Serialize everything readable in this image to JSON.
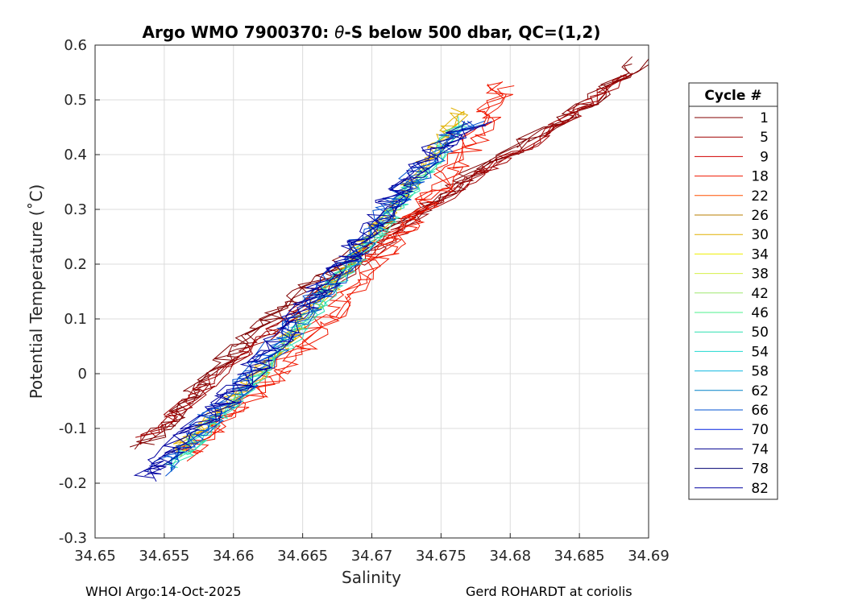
{
  "chart_data": {
    "type": "line",
    "title_prefix": "Argo WMO 7900370: ",
    "title_symbol": "θ",
    "title_suffix": "-S below 500 dbar,  QC=(1,2)",
    "xlabel": "Salinity",
    "ylabel": "Potential Temperature (˚C)",
    "xlim": [
      34.65,
      34.69
    ],
    "ylim": [
      -0.3,
      0.6
    ],
    "x_ticks": [
      34.65,
      34.655,
      34.66,
      34.665,
      34.67,
      34.675,
      34.68,
      34.685,
      34.69
    ],
    "x_tick_labels": [
      "34.65",
      "34.655",
      "34.66",
      "34.665",
      "34.67",
      "34.675",
      "34.68",
      "34.685",
      "34.69"
    ],
    "y_ticks": [
      -0.3,
      -0.2,
      -0.1,
      0,
      0.1,
      0.2,
      0.3,
      0.4,
      0.5,
      0.6
    ],
    "y_tick_labels": [
      "-0.3",
      "-0.2",
      "-0.1",
      "0",
      "0.1",
      "0.2",
      "0.3",
      "0.4",
      "0.5",
      "0.6"
    ],
    "grid": true,
    "legend": {
      "title": "Cycle #",
      "placement": "right",
      "entries": [
        {
          "label": "1",
          "color": "#800000"
        },
        {
          "label": "5",
          "color": "#a00000"
        },
        {
          "label": "9",
          "color": "#d10000"
        },
        {
          "label": "18",
          "color": "#f01800"
        },
        {
          "label": "22",
          "color": "#ff5000"
        },
        {
          "label": "26",
          "color": "#b87f00"
        },
        {
          "label": "30",
          "color": "#e0b000"
        },
        {
          "label": "34",
          "color": "#eeee00"
        },
        {
          "label": "38",
          "color": "#d6f04a"
        },
        {
          "label": "42",
          "color": "#9fe870"
        },
        {
          "label": "46",
          "color": "#4ef08c"
        },
        {
          "label": "50",
          "color": "#2de0b0"
        },
        {
          "label": "54",
          "color": "#20d8d0"
        },
        {
          "label": "58",
          "color": "#10b8e0"
        },
        {
          "label": "62",
          "color": "#0080c8"
        },
        {
          "label": "66",
          "color": "#0050d0"
        },
        {
          "label": "70",
          "color": "#0020e0"
        },
        {
          "label": "74",
          "color": "#000090"
        },
        {
          "label": "78",
          "color": "#000070"
        },
        {
          "label": "82",
          "color": "#0000a0"
        }
      ]
    },
    "series_bands": [
      {
        "name": "1",
        "color": "#800000",
        "x": [
          34.6535,
          34.6565,
          34.6575,
          34.6605,
          34.6635,
          34.6665,
          34.6695,
          34.6715,
          34.6755,
          34.6775,
          34.6805,
          34.6825,
          34.6855,
          34.6875,
          34.6895
        ],
        "y": [
          -0.13,
          -0.06,
          -0.02,
          0.05,
          0.12,
          0.18,
          0.23,
          0.27,
          0.33,
          0.37,
          0.41,
          0.45,
          0.49,
          0.53,
          0.57
        ],
        "spread": 0.001
      },
      {
        "name": "5",
        "color": "#a00000",
        "x": [
          34.6535,
          34.6565,
          34.6585,
          34.6615,
          34.6655,
          34.6695,
          34.6735,
          34.6775,
          34.6815,
          34.6855,
          34.6885
        ],
        "y": [
          -0.12,
          -0.06,
          -0.01,
          0.05,
          0.13,
          0.21,
          0.29,
          0.36,
          0.42,
          0.49,
          0.55
        ],
        "spread": 0.0008
      },
      {
        "name": "18",
        "color": "#f01800",
        "x": [
          34.6565,
          34.6595,
          34.6625,
          34.6655,
          34.6685,
          34.6715,
          34.6745,
          34.6775,
          34.6795
        ],
        "y": [
          -0.15,
          -0.08,
          -0.02,
          0.06,
          0.15,
          0.24,
          0.33,
          0.43,
          0.53
        ],
        "spread": 0.0012
      },
      {
        "name": "30",
        "color": "#e0b000",
        "x": [
          34.6555,
          34.6585,
          34.6615,
          34.6645,
          34.6675,
          34.6705,
          34.6735,
          34.6765
        ],
        "y": [
          -0.15,
          -0.08,
          -0.01,
          0.08,
          0.17,
          0.27,
          0.37,
          0.48
        ],
        "spread": 0.0008
      },
      {
        "name": "50",
        "color": "#2de0b0",
        "x": [
          34.6555,
          34.6585,
          34.6615,
          34.6645,
          34.6675,
          34.6705,
          34.6735,
          34.6765
        ],
        "y": [
          -0.17,
          -0.09,
          -0.01,
          0.07,
          0.17,
          0.26,
          0.36,
          0.46
        ],
        "spread": 0.0008
      },
      {
        "name": "66",
        "color": "#0050d0",
        "x": [
          34.6545,
          34.6575,
          34.6605,
          34.6635,
          34.6665,
          34.6695,
          34.6725,
          34.6755,
          34.6775
        ],
        "y": [
          -0.18,
          -0.1,
          -0.03,
          0.06,
          0.15,
          0.25,
          0.34,
          0.43,
          0.46
        ],
        "spread": 0.0012
      },
      {
        "name": "82",
        "color": "#0000a0",
        "x": [
          34.6535,
          34.6565,
          34.6595,
          34.6625,
          34.6655,
          34.6685,
          34.6715,
          34.6745,
          34.6775
        ],
        "y": [
          -0.19,
          -0.12,
          -0.05,
          0.04,
          0.13,
          0.22,
          0.32,
          0.41,
          0.46
        ],
        "spread": 0.0012
      }
    ]
  },
  "footer": {
    "left": "WHOI Argo:14-Oct-2025",
    "right": "Gerd ROHARDT at coriolis"
  }
}
